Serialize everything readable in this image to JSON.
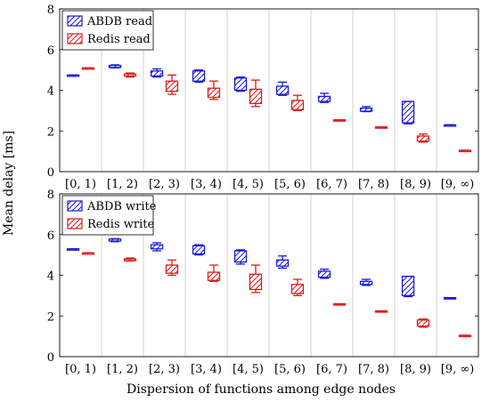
{
  "figure": {
    "ylabel": "Mean delay [ms]",
    "xlabel": "Dispersion of functions among edge nodes"
  },
  "chart_data": [
    {
      "type": "box",
      "categories": [
        "[0, 1)",
        "[1, 2)",
        "[2, 3)",
        "[3, 4)",
        "[4, 5)",
        "[5, 6)",
        "[6, 7)",
        "[7, 8)",
        "[8, 9)",
        "[9, ∞)"
      ],
      "ylim": [
        0,
        8
      ],
      "yticks": [
        0,
        2,
        4,
        6,
        8
      ],
      "grid": "x",
      "legend_position": "top-left",
      "ylabel": "Mean delay [ms]",
      "series": [
        {
          "name": "ABDB read",
          "color": "#1a1adb",
          "boxes": [
            {
              "low": 4.75,
              "q1": 4.75,
              "q3": 4.75,
              "high": 4.75
            },
            {
              "low": 5.1,
              "q1": 5.12,
              "q3": 5.22,
              "high": 5.25
            },
            {
              "low": 4.65,
              "q1": 4.7,
              "q3": 4.95,
              "high": 5.05
            },
            {
              "low": 4.4,
              "q1": 4.45,
              "q3": 4.95,
              "high": 5.0
            },
            {
              "low": 3.95,
              "q1": 4.0,
              "q3": 4.6,
              "high": 4.65
            },
            {
              "low": 3.75,
              "q1": 3.8,
              "q3": 4.2,
              "high": 4.4
            },
            {
              "low": 3.4,
              "q1": 3.45,
              "q3": 3.7,
              "high": 3.85
            },
            {
              "low": 2.95,
              "q1": 2.97,
              "q3": 3.12,
              "high": 3.2
            },
            {
              "low": 2.35,
              "q1": 2.4,
              "q3": 3.45,
              "high": 3.45
            },
            {
              "low": 2.3,
              "q1": 2.3,
              "q3": 2.3,
              "high": 2.3
            }
          ]
        },
        {
          "name": "Redis read",
          "color": "#e01b1b",
          "boxes": [
            {
              "low": 5.1,
              "q1": 5.1,
              "q3": 5.1,
              "high": 5.1
            },
            {
              "low": 4.65,
              "q1": 4.7,
              "q3": 4.8,
              "high": 4.85
            },
            {
              "low": 3.8,
              "q1": 3.95,
              "q3": 4.45,
              "high": 4.75
            },
            {
              "low": 3.55,
              "q1": 3.65,
              "q3": 4.1,
              "high": 4.45
            },
            {
              "low": 3.2,
              "q1": 3.35,
              "q3": 4.05,
              "high": 4.5
            },
            {
              "low": 3.0,
              "q1": 3.05,
              "q3": 3.5,
              "high": 3.75
            },
            {
              "low": 2.55,
              "q1": 2.55,
              "q3": 2.55,
              "high": 2.55
            },
            {
              "low": 2.2,
              "q1": 2.2,
              "q3": 2.2,
              "high": 2.2
            },
            {
              "low": 1.45,
              "q1": 1.5,
              "q3": 1.75,
              "high": 1.85
            },
            {
              "low": 1.05,
              "q1": 1.05,
              "q3": 1.05,
              "high": 1.05
            }
          ]
        }
      ]
    },
    {
      "type": "box",
      "categories": [
        "[0, 1)",
        "[1, 2)",
        "[2, 3)",
        "[3, 4)",
        "[4, 5)",
        "[5, 6)",
        "[6, 7)",
        "[7, 8)",
        "[8, 9)",
        "[9, ∞)"
      ],
      "ylim": [
        0,
        8
      ],
      "yticks": [
        0,
        2,
        4,
        6,
        8
      ],
      "grid": "x",
      "legend_position": "top-left",
      "xlabel": "Dispersion of functions among edge nodes",
      "series": [
        {
          "name": "ABDB write",
          "color": "#1a1adb",
          "boxes": [
            {
              "low": 5.3,
              "q1": 5.3,
              "q3": 5.3,
              "high": 5.3
            },
            {
              "low": 5.65,
              "q1": 5.68,
              "q3": 5.78,
              "high": 5.8
            },
            {
              "low": 5.2,
              "q1": 5.3,
              "q3": 5.5,
              "high": 5.6
            },
            {
              "low": 5.0,
              "q1": 5.05,
              "q3": 5.45,
              "high": 5.5
            },
            {
              "low": 4.55,
              "q1": 4.65,
              "q3": 5.2,
              "high": 5.25
            },
            {
              "low": 4.35,
              "q1": 4.45,
              "q3": 4.75,
              "high": 4.95
            },
            {
              "low": 3.85,
              "q1": 3.9,
              "q3": 4.2,
              "high": 4.3
            },
            {
              "low": 3.5,
              "q1": 3.55,
              "q3": 3.7,
              "high": 3.8
            },
            {
              "low": 2.95,
              "q1": 3.0,
              "q3": 3.95,
              "high": 3.95
            },
            {
              "low": 2.9,
              "q1": 2.9,
              "q3": 2.9,
              "high": 2.9
            }
          ]
        },
        {
          "name": "Redis write",
          "color": "#e01b1b",
          "boxes": [
            {
              "low": 5.1,
              "q1": 5.1,
              "q3": 5.1,
              "high": 5.1
            },
            {
              "low": 4.7,
              "q1": 4.72,
              "q3": 4.8,
              "high": 4.85
            },
            {
              "low": 4.0,
              "q1": 4.1,
              "q3": 4.5,
              "high": 4.75
            },
            {
              "low": 3.7,
              "q1": 3.75,
              "q3": 4.15,
              "high": 4.5
            },
            {
              "low": 3.15,
              "q1": 3.3,
              "q3": 4.05,
              "high": 4.5
            },
            {
              "low": 3.0,
              "q1": 3.1,
              "q3": 3.55,
              "high": 3.8
            },
            {
              "low": 2.55,
              "q1": 2.55,
              "q3": 2.6,
              "high": 2.6
            },
            {
              "low": 2.2,
              "q1": 2.2,
              "q3": 2.25,
              "high": 2.25
            },
            {
              "low": 1.45,
              "q1": 1.5,
              "q3": 1.8,
              "high": 1.85
            },
            {
              "low": 1.05,
              "q1": 1.05,
              "q3": 1.05,
              "high": 1.05
            }
          ]
        }
      ]
    }
  ]
}
